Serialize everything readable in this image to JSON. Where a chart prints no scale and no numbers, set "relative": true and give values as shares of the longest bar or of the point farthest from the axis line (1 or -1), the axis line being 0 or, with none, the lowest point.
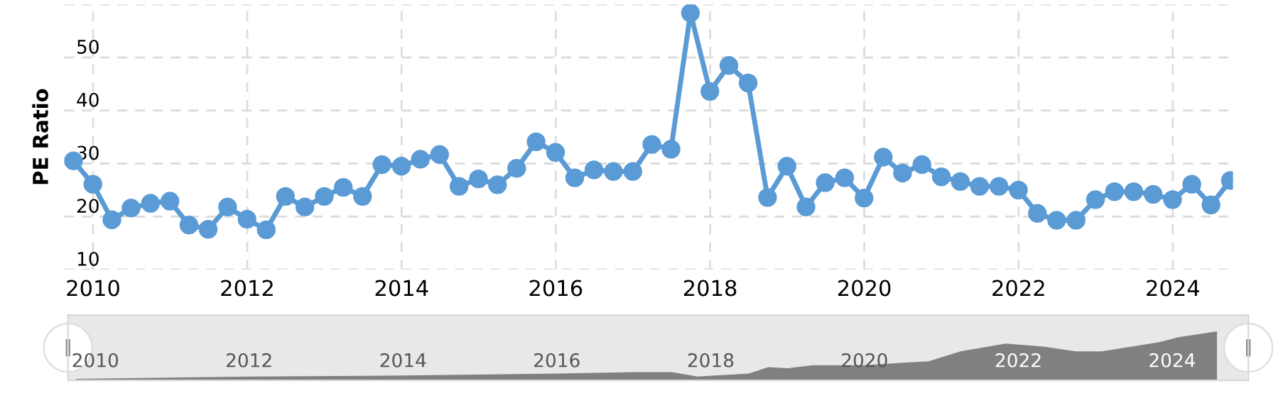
{
  "chart_data": [
    {
      "type": "line",
      "ylabel": "PE Ratio",
      "x": [
        "2009-09-30",
        "2009-12-31",
        "2010-03-31",
        "2010-06-30",
        "2010-09-30",
        "2010-12-31",
        "2011-03-31",
        "2011-06-30",
        "2011-09-30",
        "2011-12-31",
        "2012-03-31",
        "2012-06-30",
        "2012-09-30",
        "2012-12-31",
        "2013-03-31",
        "2013-06-30",
        "2013-09-30",
        "2013-12-31",
        "2014-03-31",
        "2014-06-30",
        "2014-09-30",
        "2014-12-31",
        "2015-03-31",
        "2015-06-30",
        "2015-09-30",
        "2015-12-31",
        "2016-03-31",
        "2016-06-30",
        "2016-09-30",
        "2016-12-31",
        "2017-03-31",
        "2017-06-30",
        "2017-09-30",
        "2017-12-31",
        "2018-03-31",
        "2018-06-30",
        "2018-09-30",
        "2018-12-31",
        "2019-03-31",
        "2019-06-30",
        "2019-09-30",
        "2019-12-31",
        "2020-03-31",
        "2020-06-30",
        "2020-09-30",
        "2020-12-31",
        "2021-03-31",
        "2021-06-30",
        "2021-09-30",
        "2021-12-31",
        "2022-03-31",
        "2022-06-30",
        "2022-09-30",
        "2022-12-31",
        "2023-03-31",
        "2023-06-30",
        "2023-09-30",
        "2023-12-31",
        "2024-03-31",
        "2024-06-30",
        "2024-09-30"
      ],
      "series": [
        {
          "color": "#5b9bd5",
          "values": [
            30.5,
            26.1,
            19.4,
            21.6,
            22.5,
            22.9,
            18.4,
            17.6,
            21.8,
            19.5,
            17.5,
            23.8,
            21.8,
            23.8,
            25.5,
            23.8,
            29.8,
            29.5,
            30.8,
            31.7,
            25.7,
            27.1,
            26.0,
            29.1,
            34.1,
            32.1,
            27.3,
            28.8,
            28.5,
            28.5,
            33.6,
            32.7,
            58.4,
            43.6,
            48.5,
            45.2,
            23.6,
            29.5,
            21.8,
            26.4,
            27.3,
            23.5,
            31.2,
            28.2,
            29.8,
            27.5,
            26.6,
            25.7,
            25.7,
            25.0,
            20.6,
            19.3,
            19.3,
            23.2,
            24.7,
            24.7,
            24.2,
            23.2,
            26.1,
            22.2,
            26.8
          ]
        }
      ],
      "xlim": [
        "2009-08-17",
        "2024-10-12"
      ],
      "xticks": [
        "2010",
        "2012",
        "2014",
        "2016",
        "2018",
        "2020",
        "2022",
        "2024"
      ],
      "ylim": [
        10,
        60
      ],
      "yticks": [
        10,
        20,
        30,
        40,
        50,
        {
          "value": 60,
          "label": null
        }
      ],
      "grid": true,
      "marker": "circle",
      "line_style": "solid"
    },
    {
      "type": "area",
      "relative": true,
      "color": "#808080",
      "x": [
        "2009-10",
        "2012-01",
        "2014-01",
        "2016-01",
        "2017-01",
        "2017-07",
        "2017-11",
        "2018-07",
        "2018-10",
        "2019-01",
        "2019-05",
        "2020-01",
        "2020-07",
        "2020-11",
        "2021-04",
        "2021-11",
        "2022-05",
        "2022-10",
        "2023-02",
        "2023-11",
        "2024-02",
        "2024-08"
      ],
      "values": [
        0.03,
        0.08,
        0.1,
        0.14,
        0.17,
        0.17,
        0.08,
        0.14,
        0.27,
        0.25,
        0.31,
        0.31,
        0.36,
        0.39,
        0.59,
        0.75,
        0.69,
        0.59,
        0.59,
        0.78,
        0.88,
        1
      ],
      "xlim": [
        "2009-08-24",
        "2024-12-28"
      ],
      "xticks": [
        "2010",
        "2012",
        "2014",
        "2016",
        "2018",
        "2020",
        "2022",
        "2024"
      ]
    }
  ]
}
